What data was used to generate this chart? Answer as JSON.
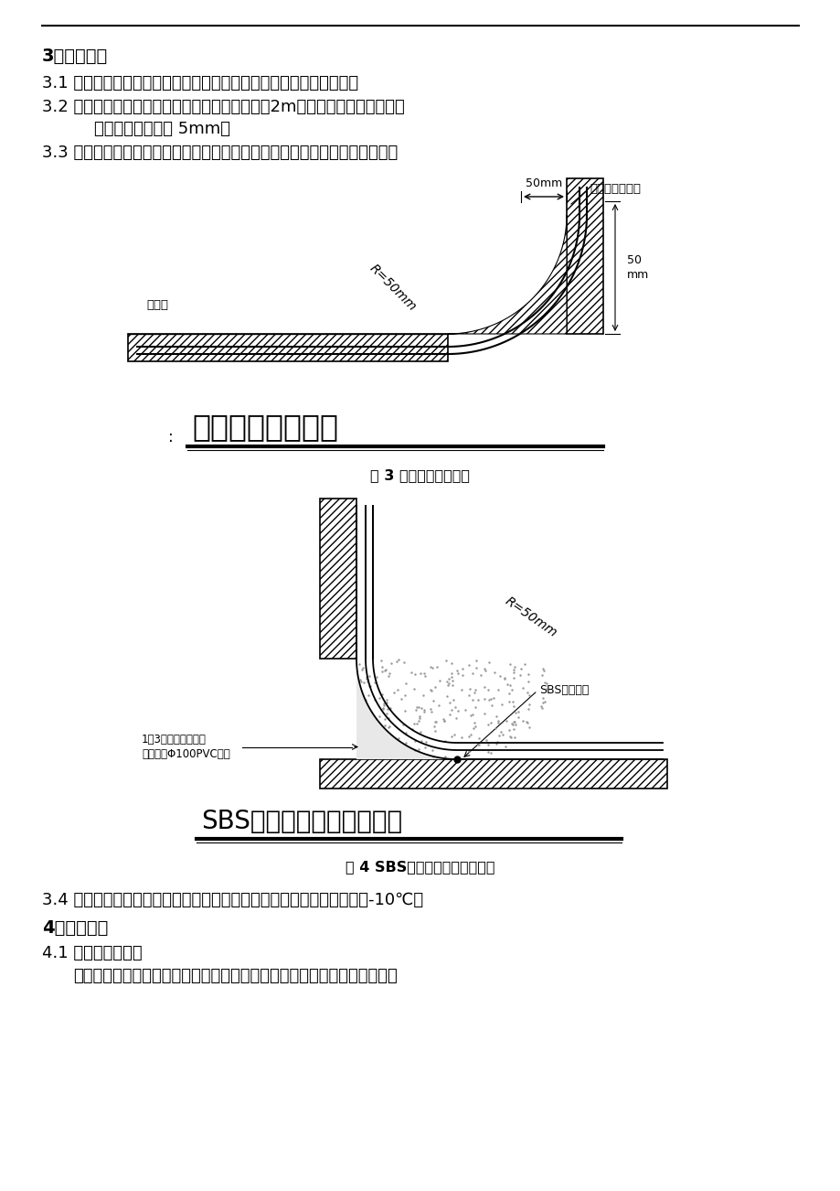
{
  "bg_color": "#ffffff",
  "text_color": "#000000",
  "section3_title": "3、施工条件",
  "line31": "3.1 基层必须牢固干净，无积水、无松动、起砂、空鼓、脱皮等缺陷；",
  "line32a": "3.2 基层表面应平整光滑、均匀一致，其平整度用2m直尺检查，面层与直尺间",
  "line32b": "    最大空隙不得大于 5mm；",
  "line33": "3.3 阴阳角应做成均匀一致，阴角为平整光滑的圆弧，阳角为钗角，如下图示：",
  "fig3_caption": "图 3 防水基层阳角半径",
  "fig3_title": "防水基层阳角半径",
  "fig3_label_fangshui": "防水层",
  "fig3_label_cibufenyong": "此部分用砂浆抹",
  "fig3_label_50mm_h": "50mm",
  "fig3_label_50mm_v": "50mm",
  "fig3_label_r50": "R=50mm",
  "fig4_caption": "图 4 SBS防水卷材基层阴角半径",
  "fig4_title": "SBS防水卷材基层阴角半径",
  "fig4_label_r50": "R=50mm",
  "fig4_label_sbs": "SBS防水卷材",
  "fig4_label_13": "1：3水泥砂浆压实光",
  "fig4_label_13b": "（用成品Φ100PVC管）",
  "line34": "3.4 防水层施工环境气温要求，因该工程采用热溶法，故环境温度不低于-10℃。",
  "section4_title": "4、施工准备",
  "line41": "4.1 技术及人员准备",
  "line41b": "施工前应对图纸审核，了解本工程施工图中的防水细部构造和技术要求，并"
}
